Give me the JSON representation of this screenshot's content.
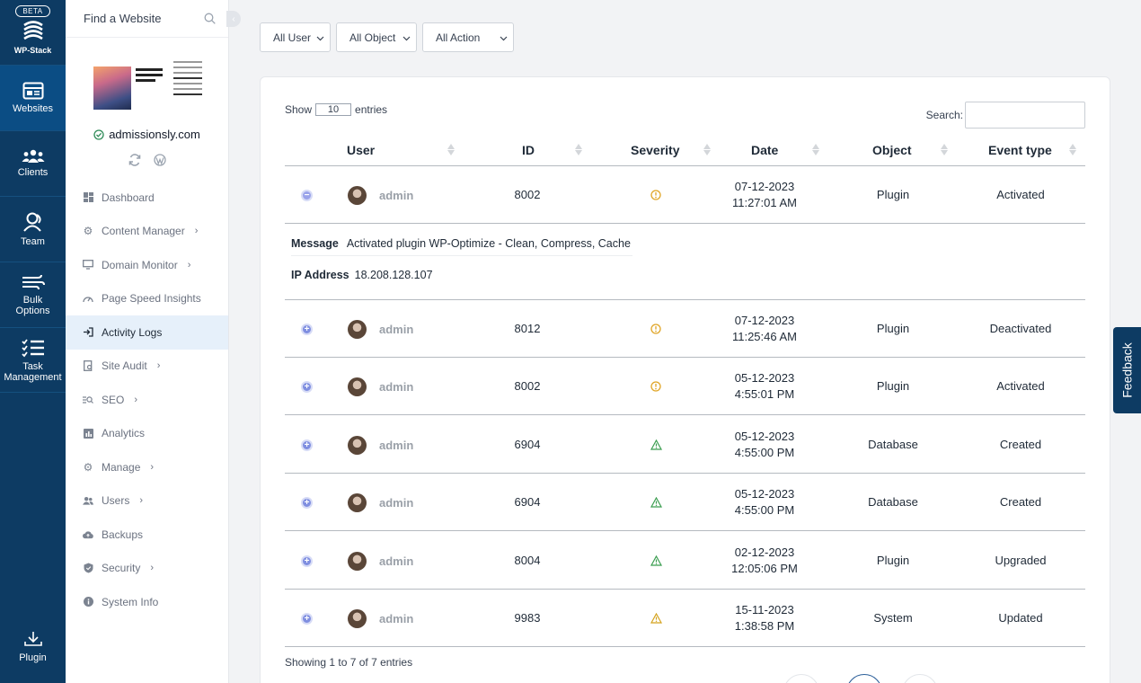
{
  "brand": {
    "badge": "BETA",
    "name": "WP-Stack"
  },
  "rail": {
    "items": [
      {
        "label": "Websites",
        "icon": "websites-icon",
        "active": true
      },
      {
        "label": "Clients",
        "icon": "clients-icon"
      },
      {
        "label": "Team",
        "icon": "team-icon"
      },
      {
        "label": "Bulk Options",
        "icon": "bulk-options-icon"
      },
      {
        "label": "Task Management",
        "icon": "task-management-icon"
      }
    ],
    "bottom": {
      "label": "Plugin",
      "icon": "download-icon"
    }
  },
  "sidebar": {
    "search_placeholder": "Find a Website",
    "site_name": "admissionsly.com",
    "menu": [
      {
        "label": "Dashboard",
        "icon": "dashboard-icon",
        "chevron": false
      },
      {
        "label": "Content Manager",
        "icon": "gear-icon",
        "chevron": true
      },
      {
        "label": "Domain Monitor",
        "icon": "monitor-icon",
        "chevron": true
      },
      {
        "label": "Page Speed Insights",
        "icon": "speed-icon",
        "chevron": false
      },
      {
        "label": "Activity Logs",
        "icon": "activity-icon",
        "chevron": false,
        "active": true
      },
      {
        "label": "Site Audit",
        "icon": "audit-icon",
        "chevron": true
      },
      {
        "label": "SEO",
        "icon": "seo-icon",
        "chevron": true
      },
      {
        "label": "Analytics",
        "icon": "analytics-icon",
        "chevron": false
      },
      {
        "label": "Manage",
        "icon": "gear-icon",
        "chevron": true
      },
      {
        "label": "Users",
        "icon": "users-icon",
        "chevron": true
      },
      {
        "label": "Backups",
        "icon": "cloud-icon",
        "chevron": false
      },
      {
        "label": "Security",
        "icon": "shield-icon",
        "chevron": true
      },
      {
        "label": "System Info",
        "icon": "info-icon",
        "chevron": false
      }
    ]
  },
  "filters": {
    "user": "All User",
    "object": "All Object",
    "action": "All Action"
  },
  "table": {
    "show_label": "Show",
    "show_value": "10",
    "entries_label": "entries",
    "search_label": "Search:",
    "headers": {
      "user": "User",
      "id": "ID",
      "severity": "Severity",
      "date": "Date",
      "object": "Object",
      "event": "Event type"
    },
    "rows": [
      {
        "user": "admin",
        "id": "8002",
        "severity": "warning",
        "date": "07-12-2023",
        "time": "11:27:01 AM",
        "object": "Plugin",
        "event": "Activated",
        "expanded": true
      },
      {
        "user": "admin",
        "id": "8012",
        "severity": "warning",
        "date": "07-12-2023",
        "time": "11:25:46 AM",
        "object": "Plugin",
        "event": "Deactivated"
      },
      {
        "user": "admin",
        "id": "8002",
        "severity": "warning",
        "date": "05-12-2023",
        "time": "4:55:01 PM",
        "object": "Plugin",
        "event": "Activated"
      },
      {
        "user": "admin",
        "id": "6904",
        "severity": "notice",
        "date": "05-12-2023",
        "time": "4:55:00 PM",
        "object": "Database",
        "event": "Created"
      },
      {
        "user": "admin",
        "id": "6904",
        "severity": "notice",
        "date": "05-12-2023",
        "time": "4:55:00 PM",
        "object": "Database",
        "event": "Created"
      },
      {
        "user": "admin",
        "id": "8004",
        "severity": "notice",
        "date": "02-12-2023",
        "time": "12:05:06 PM",
        "object": "Plugin",
        "event": "Upgraded"
      },
      {
        "user": "admin",
        "id": "9983",
        "severity": "alert",
        "date": "15-11-2023",
        "time": "1:38:58 PM",
        "object": "System",
        "event": "Updated"
      }
    ],
    "detail": {
      "message_label": "Message",
      "message": "Activated plugin WP-Optimize - Clean, Compress, Cache",
      "ip_label": "IP Address",
      "ip": "18.208.128.107"
    },
    "footer": "Showing 1 to 7 of 7 entries"
  },
  "feedback": "Feedback",
  "colors": {
    "navy": "#0d3b63",
    "warning": "#e0a526",
    "notice": "#3a9d4f",
    "alert": "#d4a21c"
  }
}
